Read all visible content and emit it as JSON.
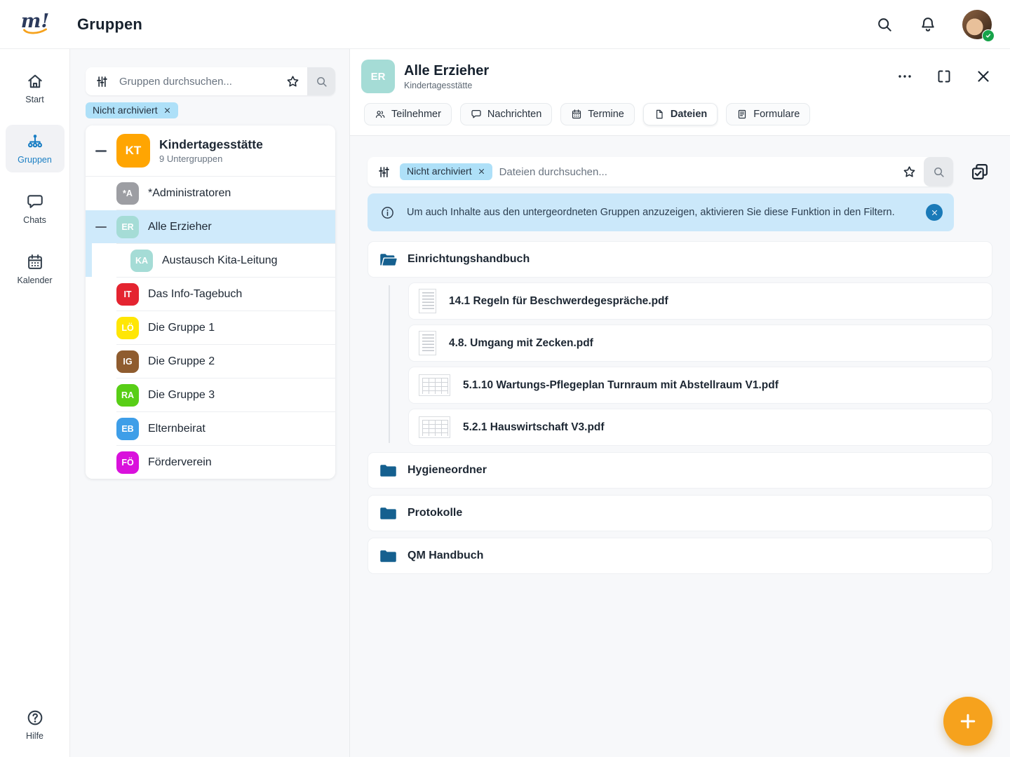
{
  "topbar": {
    "logo": "m!",
    "title": "Gruppen"
  },
  "sidebar": {
    "items": [
      {
        "id": "start",
        "label": "Start",
        "icon": "home",
        "active": false
      },
      {
        "id": "gruppen",
        "label": "Gruppen",
        "icon": "org",
        "active": true
      },
      {
        "id": "chats",
        "label": "Chats",
        "icon": "chat",
        "active": false
      },
      {
        "id": "kalender",
        "label": "Kalender",
        "icon": "calendar",
        "active": false
      }
    ],
    "help_label": "Hilfe"
  },
  "group_panel": {
    "search_placeholder": "Gruppen durchsuchen...",
    "filter_chip": "Nicht archiviert",
    "tree": [
      {
        "initials": "KT",
        "name": "Kindertagesstätte",
        "subtitle": "9 Untergruppen",
        "color": "#ffa502",
        "level": 0,
        "root": true,
        "toggle": true
      },
      {
        "initials": "*A",
        "name": "*Administratoren",
        "color": "#9d9ea3",
        "level": 1
      },
      {
        "initials": "ER",
        "name": "Alle Erzieher",
        "color": "#a5dcd6",
        "level": 1,
        "selected": true,
        "toggle": true
      },
      {
        "initials": "KA",
        "name": "Austausch Kita-Leitung",
        "color": "#a5dcd6",
        "level": 2,
        "child_of_selected": true
      },
      {
        "initials": "IT",
        "name": "Das Info-Tagebuch",
        "color": "#e42430",
        "level": 1
      },
      {
        "initials": "LÖ",
        "name": "Die Gruppe 1",
        "color": "#ffe605",
        "level": 1
      },
      {
        "initials": "IG",
        "name": "Die Gruppe 2",
        "color": "#8f5c2f",
        "level": 1
      },
      {
        "initials": "RA",
        "name": "Die Gruppe 3",
        "color": "#58ce16",
        "level": 1
      },
      {
        "initials": "EB",
        "name": "Elternbeirat",
        "color": "#3e9ee8",
        "level": 1
      },
      {
        "initials": "FÖ",
        "name": "Förderverein",
        "color": "#d911dc",
        "level": 1
      }
    ]
  },
  "detail": {
    "avatar_initials": "ER",
    "avatar_color": "#a5dcd6",
    "title": "Alle Erzieher",
    "subtitle": "Kindertagesstätte",
    "tabs": [
      {
        "id": "teilnehmer",
        "label": "Teilnehmer",
        "icon": "people",
        "active": false
      },
      {
        "id": "nachrichten",
        "label": "Nachrichten",
        "icon": "chat",
        "active": false
      },
      {
        "id": "termine",
        "label": "Termine",
        "icon": "calendar",
        "active": false
      },
      {
        "id": "dateien",
        "label": "Dateien",
        "icon": "file",
        "active": true
      },
      {
        "id": "formulare",
        "label": "Formulare",
        "icon": "form",
        "active": false
      }
    ],
    "file_search": {
      "chip": "Nicht archiviert",
      "placeholder": "Dateien durchsuchen..."
    },
    "banner_text": "Um auch Inhalte aus den untergeordneten Gruppen anzuzeigen, aktivieren Sie diese Funktion in den Filtern.",
    "open_folder": {
      "name": "Einrichtungshandbuch",
      "files": [
        {
          "name": "14.1 Regeln für Beschwerdegespräche.pdf",
          "thumb": "portrait"
        },
        {
          "name": "4.8. Umgang mit Zecken.pdf",
          "thumb": "portrait"
        },
        {
          "name": "5.1.10 Wartungs-Pflegeplan Turnraum mit Abstellraum V1.pdf",
          "thumb": "landscape"
        },
        {
          "name": "5.2.1 Hauswirtschaft V3.pdf",
          "thumb": "landscape"
        }
      ]
    },
    "closed_folders": [
      "Hygieneordner",
      "Protokolle",
      "QM Handbuch"
    ]
  },
  "colors": {
    "accent_orange": "#f6a21d",
    "accent_blue": "#1a7ab8",
    "selection_blue": "#cfeafb",
    "chip_blue": "#aee0f8",
    "banner_blue": "#cbe8fa",
    "folder_blue": "#15608f",
    "online_green": "#17a34a"
  }
}
